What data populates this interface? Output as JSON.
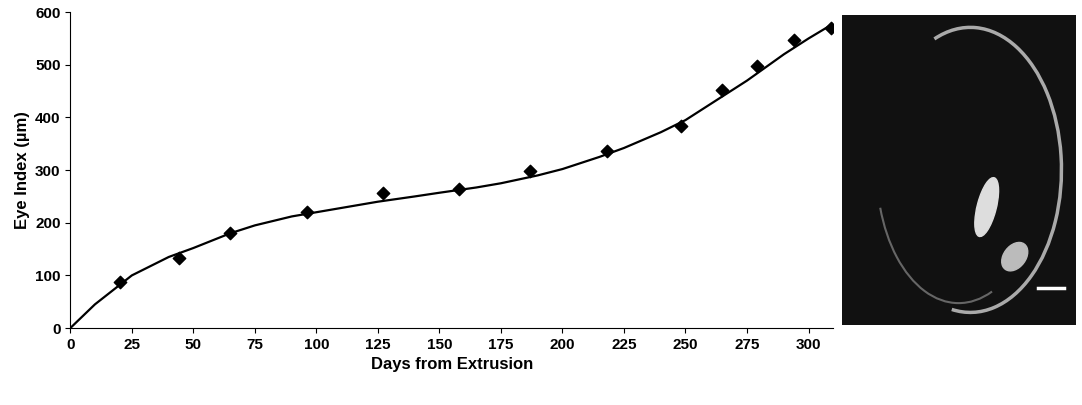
{
  "chart_data": {
    "type": "scatter",
    "x_label": "Days from Extrusion",
    "y_label": "Eye Index (µm)",
    "xlim": [
      0,
      310
    ],
    "xticks": [
      0,
      25,
      50,
      75,
      100,
      125,
      150,
      175,
      200,
      225,
      250,
      275,
      300
    ],
    "ylim": [
      0,
      600
    ],
    "yticks": [
      0,
      100,
      200,
      300,
      400,
      500,
      600
    ],
    "grid": false,
    "series": [
      {
        "type": "scatter",
        "color": "#000000",
        "marker": "diamond",
        "x": [
          20,
          44,
          65,
          96,
          127,
          158,
          187,
          218,
          248,
          265,
          279,
          294,
          309
        ],
        "values": [
          88,
          133,
          180,
          220,
          257,
          265,
          298,
          337,
          383,
          453,
          497,
          547,
          570
        ]
      },
      {
        "type": "line",
        "color": "#000000",
        "line_style": "solid",
        "x": [
          0,
          10,
          25,
          40,
          50,
          65,
          75,
          90,
          100,
          115,
          125,
          140,
          150,
          165,
          175,
          190,
          200,
          215,
          225,
          240,
          250,
          265,
          275,
          290,
          300,
          310
        ],
        "values": [
          0,
          45,
          100,
          135,
          152,
          180,
          195,
          212,
          220,
          232,
          240,
          250,
          257,
          267,
          275,
          290,
          302,
          325,
          342,
          372,
          395,
          440,
          470,
          520,
          550,
          578
        ]
      }
    ]
  }
}
